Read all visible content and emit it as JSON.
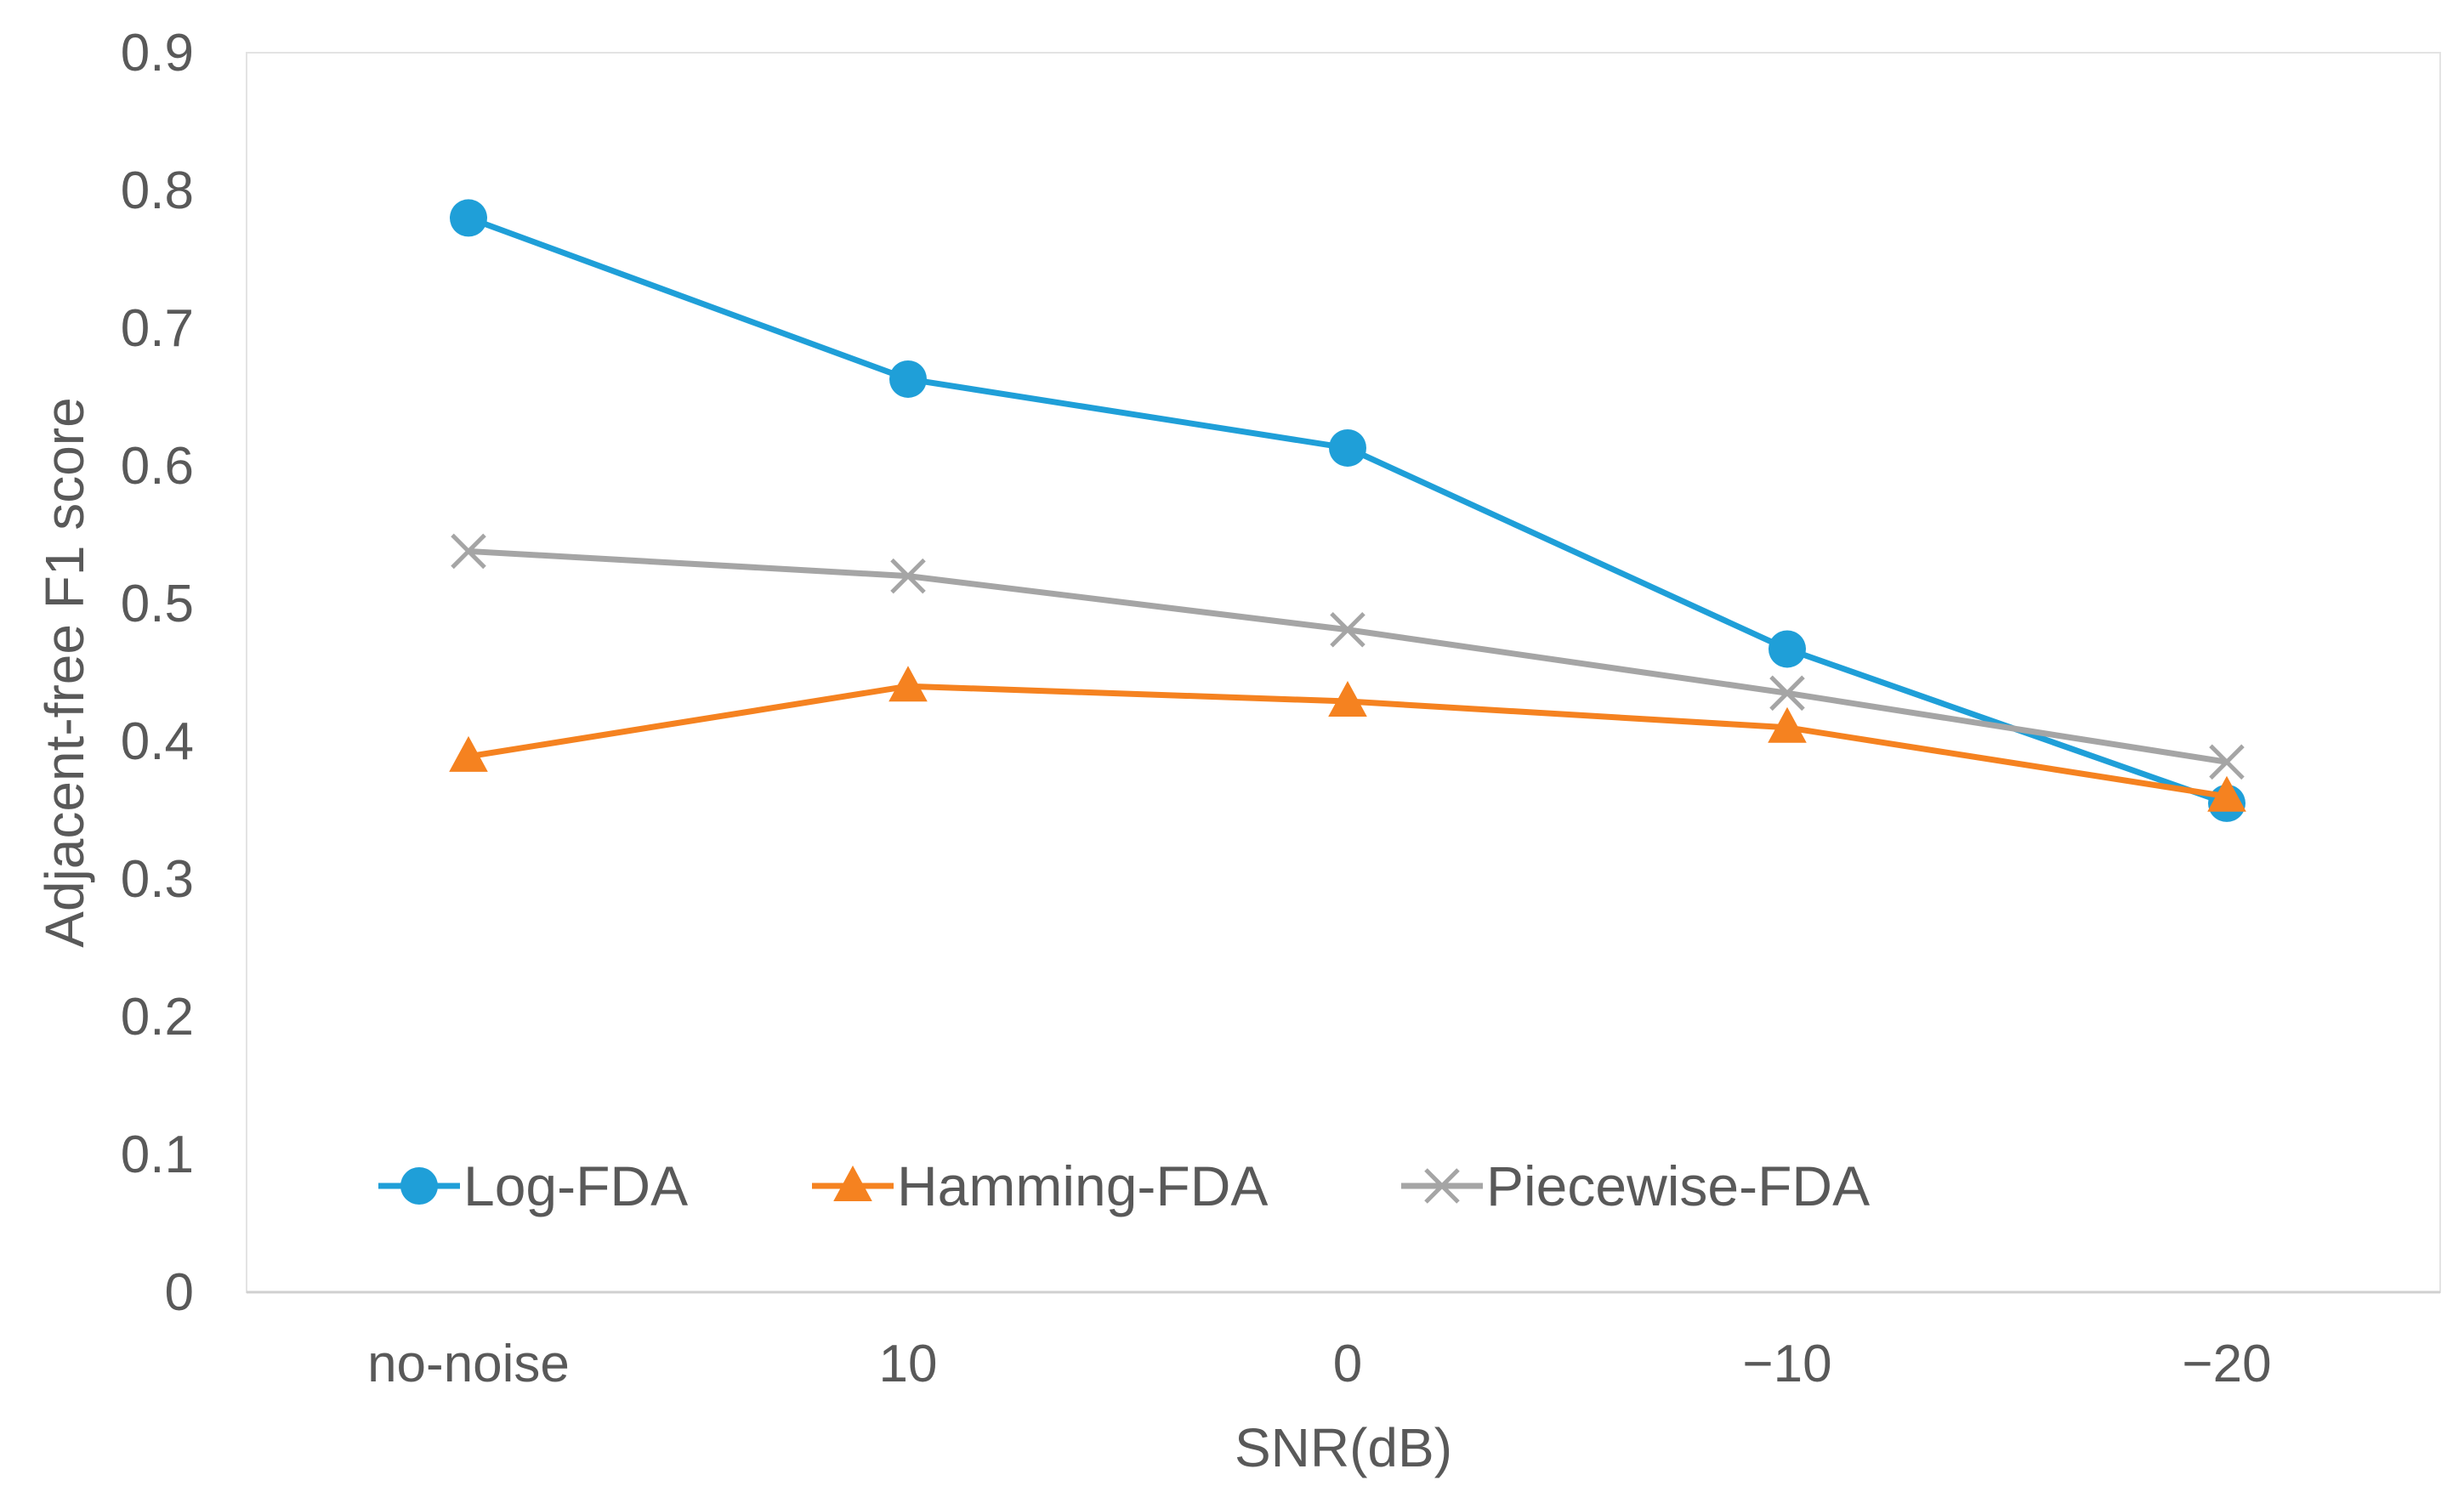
{
  "chart_data": {
    "type": "line",
    "title": "",
    "xlabel": "SNR(dB)",
    "ylabel": "Adjacent-free F1 score",
    "categories": [
      "no-noise",
      "10",
      "0",
      "−10",
      "−20"
    ],
    "ylim": [
      0,
      0.9
    ],
    "yticks": [
      0,
      0.1,
      0.2,
      0.3,
      0.4,
      0.5,
      0.6,
      0.7,
      0.8,
      0.9
    ],
    "ytick_labels": [
      "0",
      "0.1",
      "0.2",
      "0.3",
      "0.4",
      "0.5",
      "0.6",
      "0.7",
      "0.8",
      "0.9"
    ],
    "grid": false,
    "legend_position": "bottom-left inside",
    "series": [
      {
        "name": "Log-FDA",
        "values": [
          0.78,
          0.663,
          0.613,
          0.467,
          0.355
        ],
        "color": "#1f9fd8",
        "marker": "circle"
      },
      {
        "name": "Hamming-FDA",
        "values": [
          0.389,
          0.44,
          0.429,
          0.41,
          0.36
        ],
        "color": "#f58220",
        "marker": "triangle"
      },
      {
        "name": "Piecewise-FDA",
        "values": [
          0.538,
          0.52,
          0.481,
          0.435,
          0.385
        ],
        "color": "#a5a5a5",
        "marker": "x"
      }
    ]
  }
}
